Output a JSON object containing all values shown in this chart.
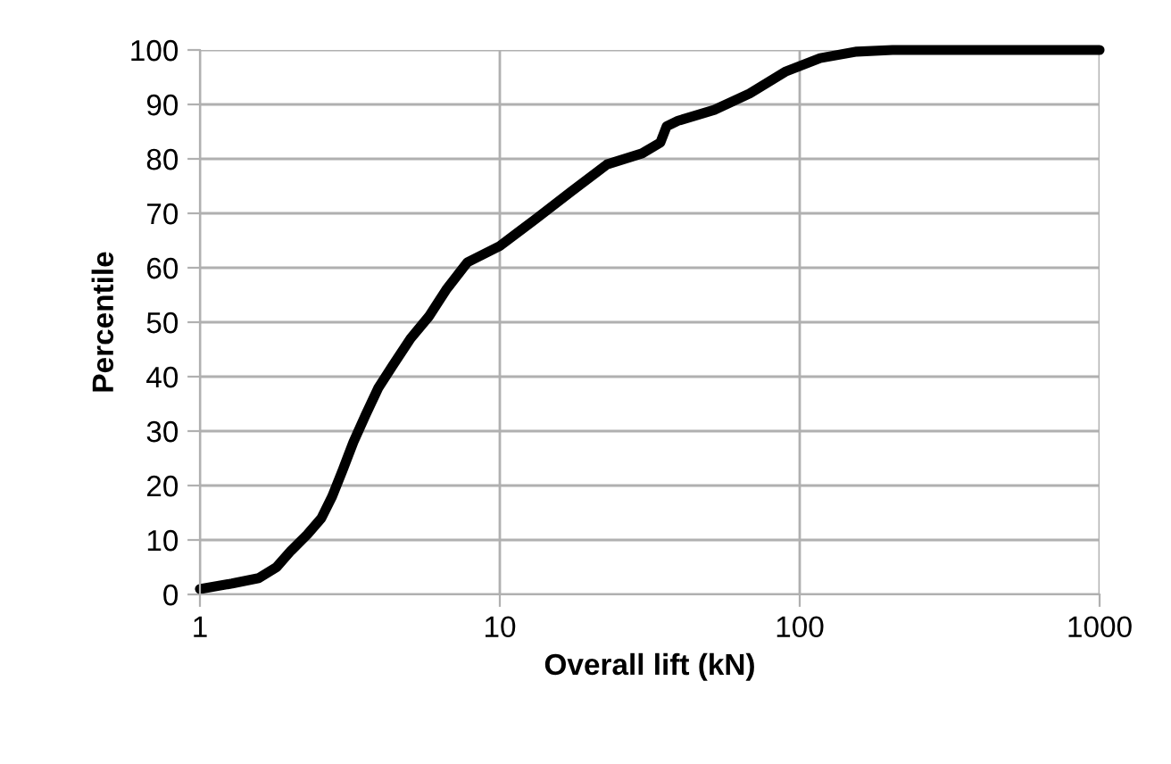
{
  "chart_data": {
    "type": "line",
    "xlabel": "Overall lift (kN)",
    "ylabel": "Percentile",
    "log": "x",
    "grid": true,
    "marker": "none",
    "line_style": "solid",
    "xlim": [
      1,
      1000
    ],
    "xticks": [
      1,
      10,
      100,
      1000
    ],
    "ylim": [
      0,
      100
    ],
    "yticks": [
      0,
      10,
      20,
      30,
      40,
      50,
      60,
      70,
      80,
      90,
      100
    ],
    "series": [
      {
        "color": "#000000",
        "x": [
          1,
          1.28,
          1.57,
          1.8,
          2.01,
          2.28,
          2.54,
          2.76,
          3.0,
          3.25,
          3.57,
          3.94,
          4.39,
          5.04,
          5.79,
          6.63,
          7.8,
          10,
          13.2,
          17.3,
          22.8,
          29.8,
          34.3,
          36,
          39.3,
          51.9,
          68.1,
          89.4,
          117,
          155,
          204,
          1000
        ],
        "values": [
          1,
          2,
          3,
          5,
          8,
          11,
          14,
          18,
          23,
          28,
          33,
          38,
          42,
          47,
          51,
          56,
          61,
          64,
          69,
          74,
          79,
          81,
          83,
          86,
          87,
          89,
          92,
          96,
          98.5,
          99.7,
          100,
          100
        ]
      }
    ]
  }
}
